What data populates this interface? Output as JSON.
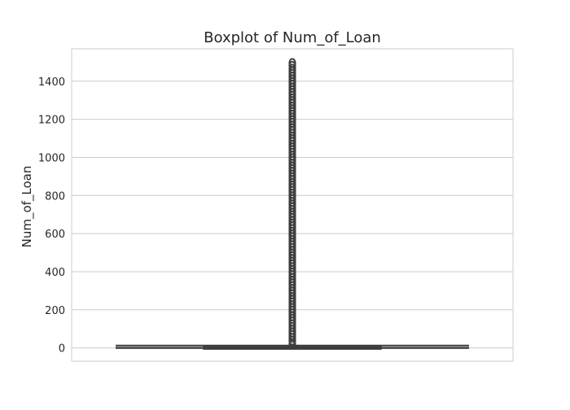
{
  "chart_data": {
    "type": "box",
    "title": "Boxplot of Num_of_Loan",
    "xlabel": "",
    "ylabel": "Num_of_Loan",
    "ylim": [
      -70,
      1570
    ],
    "yticks": [
      0,
      200,
      400,
      600,
      800,
      1000,
      1200,
      1400
    ],
    "grid": "horizontal",
    "box": {
      "min": 0,
      "q1": 2,
      "median": 3,
      "q3": 6,
      "max": 12
    },
    "outliers": [
      20,
      38,
      52,
      67,
      81,
      95,
      110,
      124,
      138,
      152,
      166,
      181,
      195,
      209,
      223,
      238,
      252,
      266,
      281,
      295,
      309,
      324,
      338,
      352,
      366,
      381,
      395,
      409,
      424,
      438,
      452,
      466,
      481,
      495,
      509,
      524,
      538,
      552,
      566,
      581,
      595,
      609,
      624,
      638,
      652,
      666,
      681,
      695,
      709,
      724,
      738,
      752,
      766,
      781,
      795,
      809,
      824,
      838,
      852,
      866,
      881,
      895,
      909,
      924,
      938,
      952,
      966,
      981,
      995,
      1009,
      1024,
      1038,
      1052,
      1066,
      1081,
      1095,
      1109,
      1124,
      1138,
      1152,
      1166,
      1181,
      1195,
      1209,
      1224,
      1238,
      1252,
      1266,
      1281,
      1295,
      1309,
      1324,
      1338,
      1352,
      1366,
      1381,
      1395,
      1409,
      1424,
      1438,
      1452,
      1466,
      1481,
      1496
    ],
    "colors": {
      "box_edge": "#3f3f3f",
      "box_fill": "#3f3f3f",
      "grid": "#cccccc",
      "frame": "#cccccc",
      "text": "#262626"
    }
  }
}
